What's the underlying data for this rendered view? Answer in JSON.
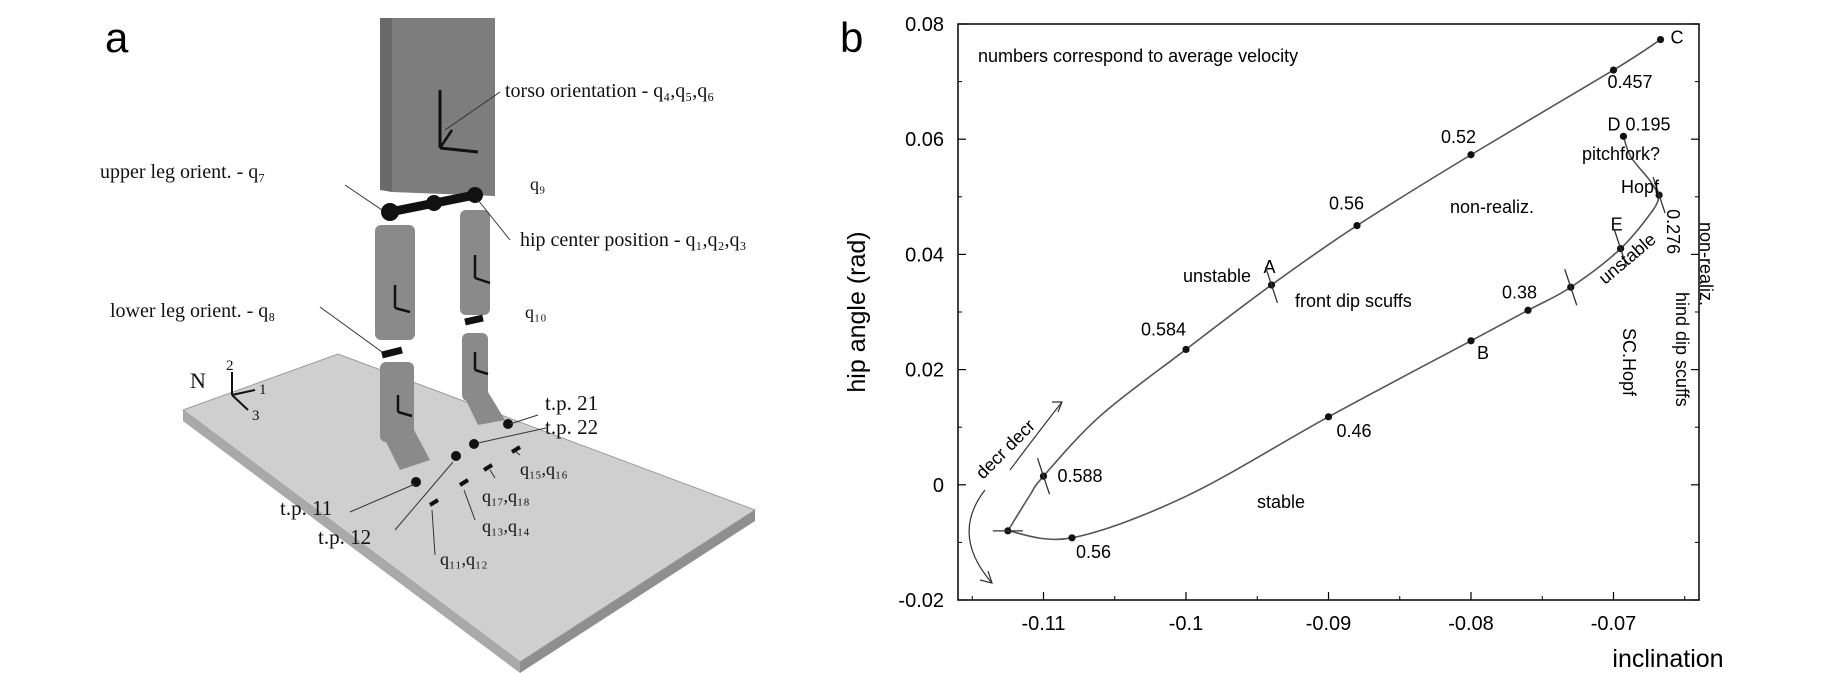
{
  "figure": {
    "panel_a": {
      "letter": "a",
      "labels": {
        "torso": "torso orientation  -  q₄,q₅,q₆",
        "upper_leg": "upper leg orient. - q₇",
        "q9": "q₉",
        "hip_center": "hip center position - q₁,q₂,q₃",
        "lower_leg": "lower leg orient. - q₈",
        "q10": "q₁₀",
        "n_frame": "N",
        "axis1": "1",
        "axis2": "2",
        "axis3": "3",
        "tp21": "t.p. 21",
        "tp22": "t.p. 22",
        "q15q16": "q₁₅,q₁₆",
        "q17q18": "q₁₇,q₁₈",
        "tp11": "t.p. 11",
        "tp12": "t.p. 12",
        "q13q14": "q₁₃,q₁₄",
        "q11q12": "q₁₁,q₁₂"
      }
    },
    "panel_b": {
      "letter": "b"
    }
  },
  "chart_data": {
    "type": "line",
    "title": "",
    "xlabel": "inclination",
    "ylabel": "hip angle (rad)",
    "xlim": [
      -0.116,
      -0.064
    ],
    "ylim": [
      -0.02,
      0.08
    ],
    "xticks": [
      -0.11,
      -0.1,
      -0.09,
      -0.08,
      -0.07
    ],
    "xtick_labels": [
      "-0.11",
      "-0.1",
      "-0.09",
      "-0.08",
      "-0.07"
    ],
    "yticks": [
      -0.02,
      0,
      0.02,
      0.04,
      0.06,
      0.08
    ],
    "ytick_labels": [
      "-0.02",
      "0",
      "0.02",
      "0.04",
      "0.06",
      "0.08"
    ],
    "grid": false,
    "note": "numbers correspond to average velocity",
    "branch_upper": {
      "x": [
        -0.1125,
        -0.111,
        -0.11,
        -0.106,
        -0.1,
        -0.094,
        -0.088,
        -0.08,
        -0.07,
        -0.0667
      ],
      "y": [
        -0.008,
        -0.002,
        0.0015,
        0.012,
        0.0235,
        0.0347,
        0.045,
        0.0573,
        0.072,
        0.0773
      ]
    },
    "branch_lower": {
      "x": [
        -0.1125,
        -0.108,
        -0.1,
        -0.09,
        -0.08,
        -0.076,
        -0.073,
        -0.0695,
        -0.0672,
        -0.0668
      ],
      "y": [
        -0.008,
        -0.0092,
        -0.002,
        0.0118,
        0.025,
        0.0303,
        0.0343,
        0.041,
        0.0478,
        0.0503
      ]
    },
    "branch_pitchfork": {
      "x": [
        -0.0668,
        -0.0675,
        -0.0688,
        -0.0693
      ],
      "y": [
        0.0503,
        0.053,
        0.057,
        0.0605
      ]
    },
    "velocity_points": [
      {
        "x": -0.0667,
        "y": 0.0773,
        "label": "C"
      },
      {
        "x": -0.07,
        "y": 0.072,
        "label": "0.457"
      },
      {
        "x": -0.0693,
        "y": 0.0605,
        "label": "D 0.195"
      },
      {
        "x": -0.08,
        "y": 0.0573,
        "label": "0.52"
      },
      {
        "x": -0.088,
        "y": 0.045,
        "label": "0.56"
      },
      {
        "x": -0.094,
        "y": 0.0347,
        "label": "A"
      },
      {
        "x": -0.1,
        "y": 0.0235,
        "label": "0.584"
      },
      {
        "x": -0.11,
        "y": 0.0015,
        "label": "0.588"
      },
      {
        "x": -0.1125,
        "y": -0.008,
        "label": ""
      },
      {
        "x": -0.108,
        "y": -0.0092,
        "label": "0.56"
      },
      {
        "x": -0.09,
        "y": 0.0118,
        "label": "0.46"
      },
      {
        "x": -0.08,
        "y": 0.025,
        "label": "B"
      },
      {
        "x": -0.076,
        "y": 0.0303,
        "label": "0.38"
      },
      {
        "x": -0.073,
        "y": 0.0343,
        "label": ""
      },
      {
        "x": -0.0695,
        "y": 0.041,
        "label": "E"
      },
      {
        "x": -0.0668,
        "y": 0.0503,
        "label": "0.276"
      }
    ],
    "annotations": {
      "unstable_upper": "unstable",
      "front_dip": "front dip scuffs",
      "non_realiz_upper": "non-realiz.",
      "pitchfork": "pitchfork?",
      "hopf": "Hopf",
      "non_realiz_right": "non-realiz.",
      "unstable_lower": "unstable",
      "sc_hopf": "SC.Hopf",
      "hind_dip": "hind dip scuffs",
      "stable": "stable",
      "decr": "decr decr"
    }
  }
}
